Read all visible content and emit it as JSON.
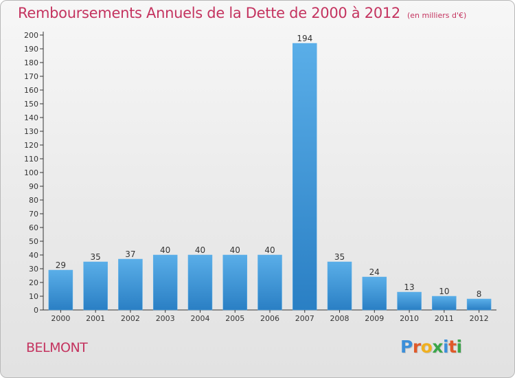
{
  "header": {
    "title": "Remboursements Annuels de la Dette de 2000 à 2012",
    "subtitle": "(en milliers d'€)"
  },
  "footer": {
    "commune": "BELMONT",
    "brand_letters": [
      "P",
      "r",
      "o",
      "x",
      "i",
      "t",
      "i"
    ],
    "brand_colors": [
      "#3c8fd9",
      "#e05a2a",
      "#f0b020",
      "#3aa64a",
      "#3c8fd9",
      "#e05a2a",
      "#3aa64a"
    ]
  },
  "colors": {
    "bar_top": "#5aaee8",
    "bar_bottom": "#2a7fc4",
    "title": "#c4335f"
  },
  "chart_data": {
    "type": "bar",
    "title": "Remboursements Annuels de la Dette de 2000 à 2012",
    "subtitle": "(en milliers d'€)",
    "categories": [
      "2000",
      "2001",
      "2002",
      "2003",
      "2004",
      "2005",
      "2006",
      "2007",
      "2008",
      "2009",
      "2010",
      "2011",
      "2012"
    ],
    "values": [
      29,
      35,
      37,
      40,
      40,
      40,
      40,
      194,
      35,
      24,
      13,
      10,
      8
    ],
    "ylim": [
      0,
      200
    ],
    "yticks": [
      0,
      10,
      20,
      30,
      40,
      50,
      60,
      70,
      80,
      90,
      100,
      110,
      120,
      130,
      140,
      150,
      160,
      170,
      180,
      190,
      200
    ],
    "grid": false,
    "legend": "none"
  }
}
